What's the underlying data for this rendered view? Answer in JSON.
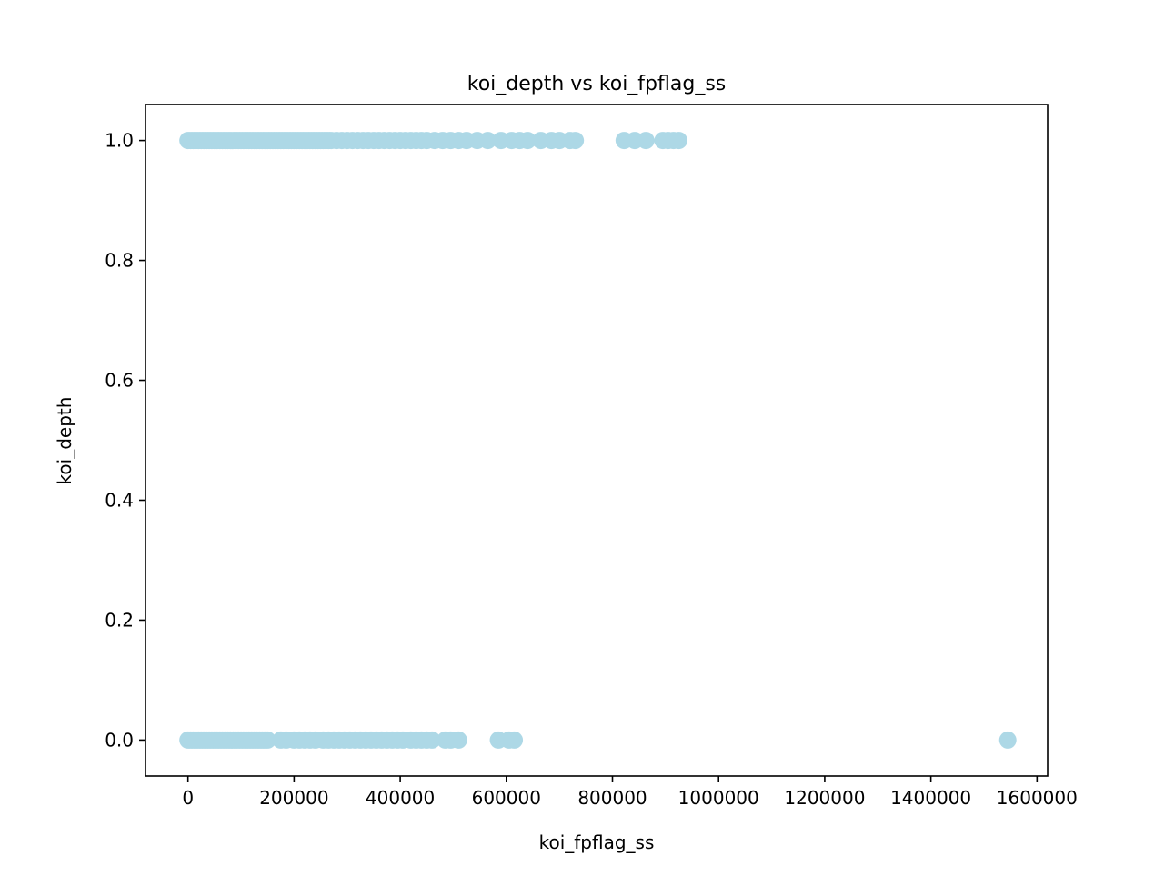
{
  "chart_data": {
    "type": "scatter",
    "title": "koi_depth vs koi_fpflag_ss",
    "xlabel": "koi_fpflag_ss",
    "ylabel": "koi_depth",
    "xlim": [
      -80000,
      1620000
    ],
    "ylim": [
      -0.06,
      1.06
    ],
    "x_ticks": [
      0,
      200000,
      400000,
      600000,
      800000,
      1000000,
      1200000,
      1400000,
      1600000
    ],
    "x_tick_labels": [
      "0",
      "200000",
      "400000",
      "600000",
      "800000",
      "1000000",
      "1200000",
      "1400000",
      "1600000"
    ],
    "y_ticks": [
      0.0,
      0.2,
      0.4,
      0.6,
      0.8,
      1.0
    ],
    "y_tick_labels": [
      "0.0",
      "0.2",
      "0.4",
      "0.6",
      "0.8",
      "1.0"
    ],
    "grid": false,
    "marker_color": "#add8e6",
    "series": [
      {
        "points": [
          [
            0,
            1
          ],
          [
            5000,
            1
          ],
          [
            10000,
            1
          ],
          [
            15000,
            1
          ],
          [
            20000,
            1
          ],
          [
            25000,
            1
          ],
          [
            30000,
            1
          ],
          [
            35000,
            1
          ],
          [
            40000,
            1
          ],
          [
            45000,
            1
          ],
          [
            50000,
            1
          ],
          [
            55000,
            1
          ],
          [
            60000,
            1
          ],
          [
            65000,
            1
          ],
          [
            70000,
            1
          ],
          [
            75000,
            1
          ],
          [
            80000,
            1
          ],
          [
            85000,
            1
          ],
          [
            90000,
            1
          ],
          [
            95000,
            1
          ],
          [
            100000,
            1
          ],
          [
            105000,
            1
          ],
          [
            110000,
            1
          ],
          [
            115000,
            1
          ],
          [
            120000,
            1
          ],
          [
            125000,
            1
          ],
          [
            130000,
            1
          ],
          [
            135000,
            1
          ],
          [
            140000,
            1
          ],
          [
            145000,
            1
          ],
          [
            150000,
            1
          ],
          [
            155000,
            1
          ],
          [
            160000,
            1
          ],
          [
            165000,
            1
          ],
          [
            170000,
            1
          ],
          [
            175000,
            1
          ],
          [
            180000,
            1
          ],
          [
            185000,
            1
          ],
          [
            190000,
            1
          ],
          [
            195000,
            1
          ],
          [
            200000,
            1
          ],
          [
            205000,
            1
          ],
          [
            210000,
            1
          ],
          [
            215000,
            1
          ],
          [
            220000,
            1
          ],
          [
            225000,
            1
          ],
          [
            230000,
            1
          ],
          [
            235000,
            1
          ],
          [
            240000,
            1
          ],
          [
            245000,
            1
          ],
          [
            250000,
            1
          ],
          [
            255000,
            1
          ],
          [
            260000,
            1
          ],
          [
            265000,
            1
          ],
          [
            270000,
            1
          ],
          [
            280000,
            1
          ],
          [
            290000,
            1
          ],
          [
            300000,
            1
          ],
          [
            310000,
            1
          ],
          [
            320000,
            1
          ],
          [
            330000,
            1
          ],
          [
            340000,
            1
          ],
          [
            350000,
            1
          ],
          [
            360000,
            1
          ],
          [
            370000,
            1
          ],
          [
            380000,
            1
          ],
          [
            390000,
            1
          ],
          [
            400000,
            1
          ],
          [
            410000,
            1
          ],
          [
            420000,
            1
          ],
          [
            430000,
            1
          ],
          [
            440000,
            1
          ],
          [
            450000,
            1
          ],
          [
            465000,
            1
          ],
          [
            480000,
            1
          ],
          [
            495000,
            1
          ],
          [
            510000,
            1
          ],
          [
            525000,
            1
          ],
          [
            545000,
            1
          ],
          [
            565000,
            1
          ],
          [
            590000,
            1
          ],
          [
            610000,
            1
          ],
          [
            625000,
            1
          ],
          [
            640000,
            1
          ],
          [
            665000,
            1
          ],
          [
            685000,
            1
          ],
          [
            700000,
            1
          ],
          [
            720000,
            1
          ],
          [
            730000,
            1
          ],
          [
            822000,
            1
          ],
          [
            842000,
            1
          ],
          [
            863000,
            1
          ],
          [
            895000,
            1
          ],
          [
            905000,
            1
          ],
          [
            915000,
            1
          ],
          [
            925000,
            1
          ],
          [
            0,
            0
          ],
          [
            5000,
            0
          ],
          [
            10000,
            0
          ],
          [
            15000,
            0
          ],
          [
            20000,
            0
          ],
          [
            25000,
            0
          ],
          [
            30000,
            0
          ],
          [
            35000,
            0
          ],
          [
            40000,
            0
          ],
          [
            45000,
            0
          ],
          [
            50000,
            0
          ],
          [
            55000,
            0
          ],
          [
            60000,
            0
          ],
          [
            65000,
            0
          ],
          [
            70000,
            0
          ],
          [
            75000,
            0
          ],
          [
            80000,
            0
          ],
          [
            85000,
            0
          ],
          [
            90000,
            0
          ],
          [
            95000,
            0
          ],
          [
            100000,
            0
          ],
          [
            105000,
            0
          ],
          [
            110000,
            0
          ],
          [
            115000,
            0
          ],
          [
            120000,
            0
          ],
          [
            125000,
            0
          ],
          [
            130000,
            0
          ],
          [
            135000,
            0
          ],
          [
            140000,
            0
          ],
          [
            145000,
            0
          ],
          [
            150000,
            0
          ],
          [
            175000,
            0
          ],
          [
            185000,
            0
          ],
          [
            200000,
            0
          ],
          [
            210000,
            0
          ],
          [
            220000,
            0
          ],
          [
            230000,
            0
          ],
          [
            240000,
            0
          ],
          [
            255000,
            0
          ],
          [
            265000,
            0
          ],
          [
            275000,
            0
          ],
          [
            285000,
            0
          ],
          [
            295000,
            0
          ],
          [
            305000,
            0
          ],
          [
            315000,
            0
          ],
          [
            325000,
            0
          ],
          [
            335000,
            0
          ],
          [
            345000,
            0
          ],
          [
            355000,
            0
          ],
          [
            365000,
            0
          ],
          [
            375000,
            0
          ],
          [
            385000,
            0
          ],
          [
            395000,
            0
          ],
          [
            405000,
            0
          ],
          [
            420000,
            0
          ],
          [
            430000,
            0
          ],
          [
            440000,
            0
          ],
          [
            450000,
            0
          ],
          [
            460000,
            0
          ],
          [
            485000,
            0
          ],
          [
            495000,
            0
          ],
          [
            510000,
            0
          ],
          [
            585000,
            0
          ],
          [
            605000,
            0
          ],
          [
            615000,
            0
          ],
          [
            1545000,
            0
          ]
        ]
      }
    ]
  }
}
